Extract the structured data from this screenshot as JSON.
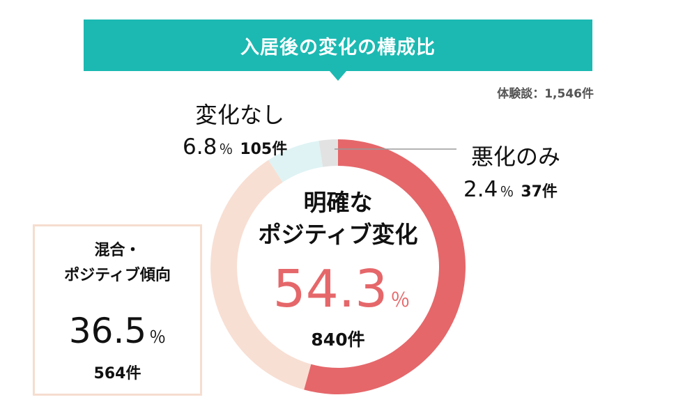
{
  "title": "入居後の変化の構成比",
  "sample_note": "体験談：1,546件",
  "colors": {
    "banner": "#1bb9b2",
    "positive": "#e5676a",
    "mixed": "#f8dfd3",
    "unchanged": "#dff3f4",
    "worse": "#e2e2e2",
    "mixed_box_border": "#f6ddcf",
    "leader_line": "#9a9a9a"
  },
  "labels": {
    "center": {
      "line1": "明確な",
      "line2": "ポジティブ変化",
      "pct": "54.3",
      "pct_sign": "％",
      "count": "840件"
    },
    "mixed": {
      "line1": "混合・",
      "line2": "ポジティブ傾向",
      "pct": "36.5",
      "pct_sign": "％",
      "count": "564件"
    },
    "unchanged": {
      "name": "変化なし",
      "pct": "6.8",
      "pct_sign": "％",
      "count": "105件"
    },
    "worse": {
      "name": "悪化のみ",
      "pct": "2.4",
      "pct_sign": "％",
      "count": "37件"
    }
  },
  "chart_data": {
    "type": "pie",
    "title": "入居後の変化の構成比",
    "categories": [
      "明確なポジティブ変化",
      "混合・ポジティブ傾向",
      "変化なし",
      "悪化のみ"
    ],
    "values": [
      54.3,
      36.5,
      6.8,
      2.4
    ],
    "counts": [
      840,
      564,
      105,
      37
    ],
    "unit": "%",
    "total": 1546,
    "style": "donut",
    "start": "top, clockwise"
  }
}
